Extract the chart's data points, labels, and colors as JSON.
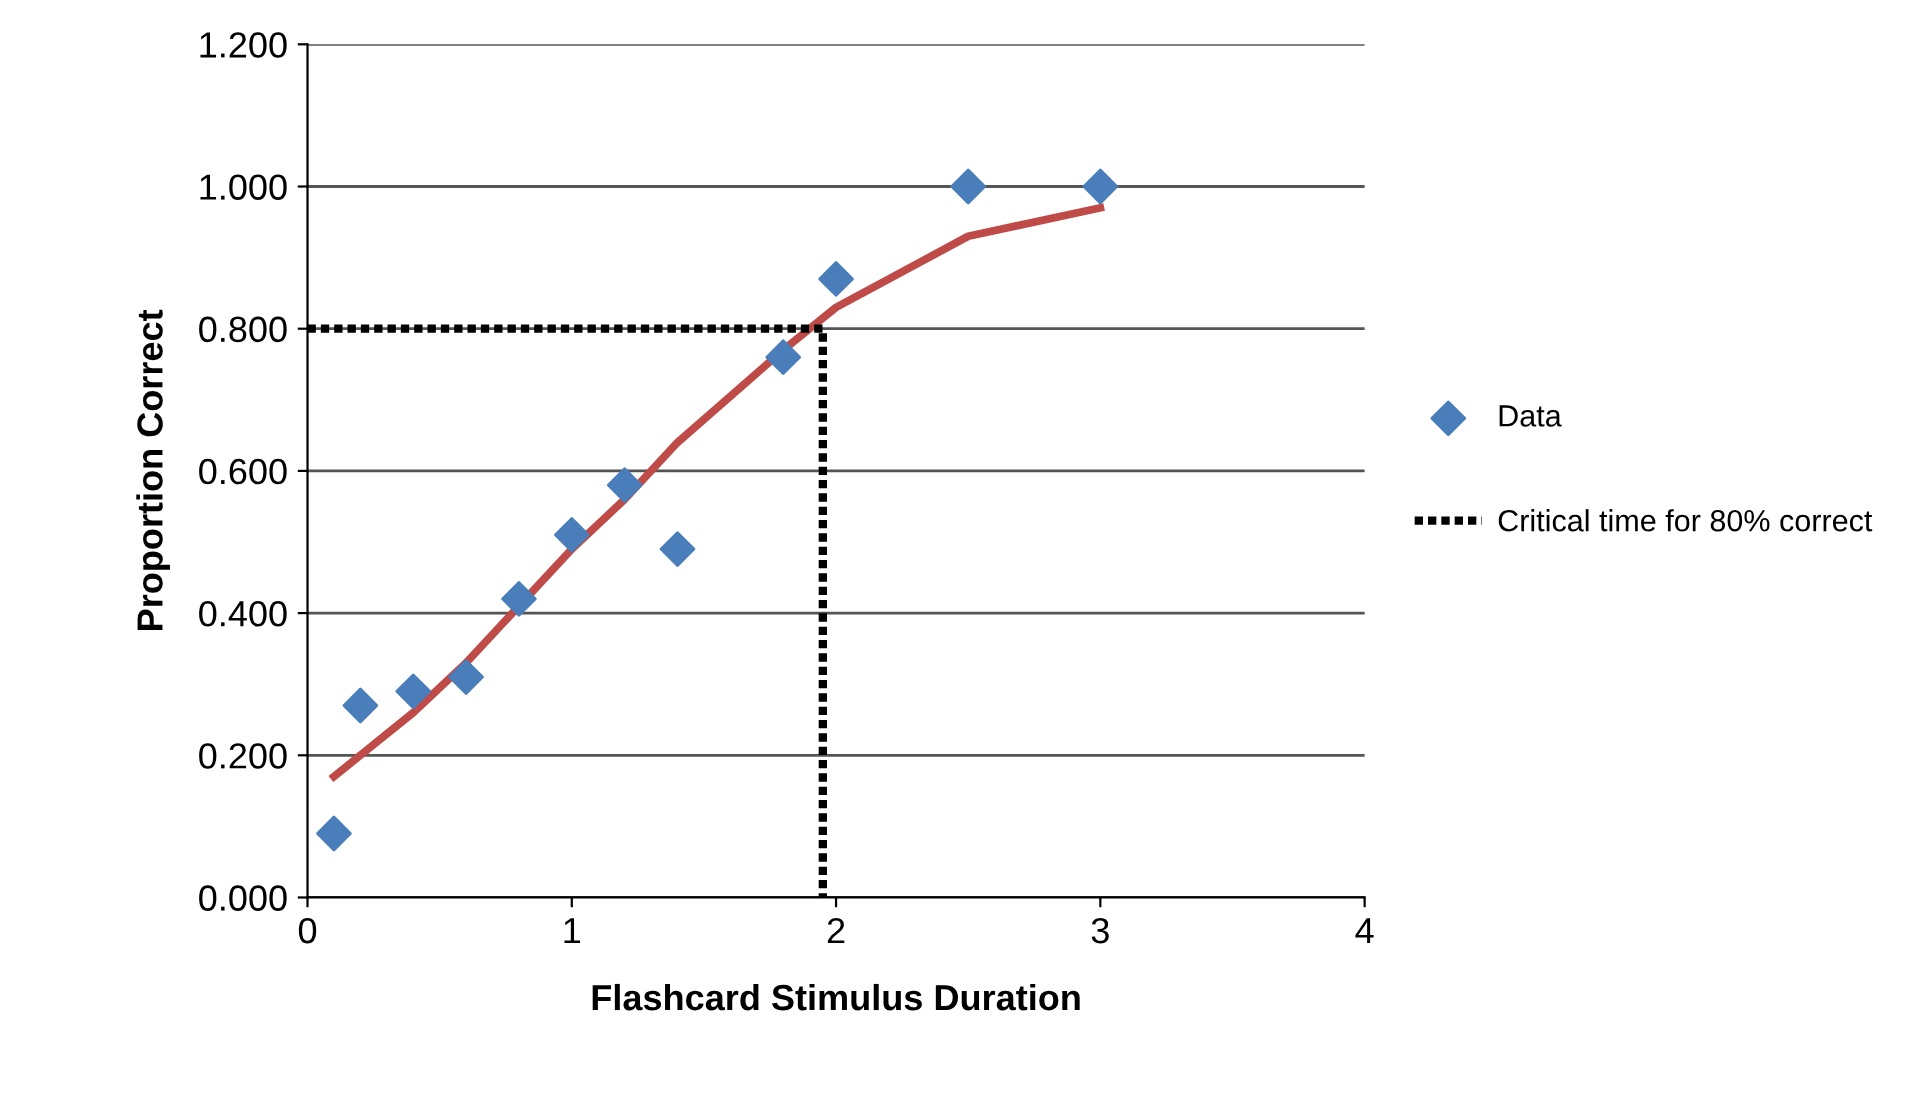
{
  "chart_data": {
    "type": "scatter",
    "xlabel": "Flashcard Stimulus Duration",
    "ylabel": "Proportion Correct",
    "xlim": [
      0,
      4
    ],
    "xticks": [
      0,
      1,
      2,
      3,
      4
    ],
    "ylim": [
      0,
      1.2
    ],
    "yticks": [
      {
        "value": 0,
        "label": "0.000"
      },
      {
        "value": 0.2,
        "label": "0.200"
      },
      {
        "value": 0.4,
        "label": "0.400"
      },
      {
        "value": 0.6,
        "label": "0.600"
      },
      {
        "value": 0.8,
        "label": "0.800"
      },
      {
        "value": 1.0,
        "label": "1.000"
      },
      {
        "value": 1.2,
        "label": "1.200"
      }
    ],
    "grid": "y",
    "legend": "right",
    "series": [
      {
        "name": "Data",
        "type": "scatter",
        "marker": "diamond",
        "color": "#4a7ebb",
        "x": [
          0.1,
          0.2,
          0.4,
          0.6,
          0.8,
          1.0,
          1.2,
          1.4,
          1.8,
          2.0,
          2.5,
          3.0
        ],
        "values": [
          0.09,
          0.27,
          0.29,
          0.31,
          0.42,
          0.51,
          0.58,
          0.49,
          0.76,
          0.87,
          1.0,
          1.0
        ]
      },
      {
        "type": "line",
        "color": "#be4b48",
        "line_style": "solid",
        "x": [
          0.1,
          0.2,
          0.4,
          0.6,
          0.8,
          1.0,
          1.2,
          1.4,
          1.8,
          2.0,
          2.5,
          3.0
        ],
        "values": [
          0.17,
          0.2,
          0.26,
          0.33,
          0.41,
          0.49,
          0.56,
          0.64,
          0.77,
          0.83,
          0.93,
          0.97
        ]
      },
      {
        "name": "Critical time for 80% correct",
        "type": "line",
        "color": "#000000",
        "line_style": "dotted",
        "x": [
          0,
          1.95,
          1.95
        ],
        "values": [
          0.8,
          0.8,
          0
        ]
      }
    ]
  }
}
